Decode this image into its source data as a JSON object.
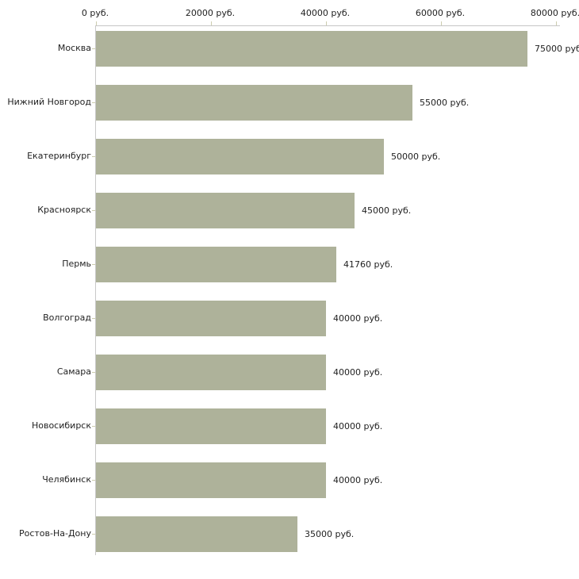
{
  "chart_data": {
    "type": "bar",
    "orientation": "horizontal",
    "title": "",
    "legend": false,
    "grid": false,
    "categories": [
      "Москва",
      "Нижний Новгород",
      "Екатеринбург",
      "Красноярск",
      "Пермь",
      "Волгоград",
      "Самара",
      "Новосибирск",
      "Челябинск",
      "Ростов-На-Дону"
    ],
    "values": [
      75000,
      55000,
      50000,
      45000,
      41760,
      40000,
      40000,
      40000,
      40000,
      35000
    ],
    "value_labels": [
      "75000 руб.",
      "55000 руб.",
      "50000 руб.",
      "45000 руб.",
      "41760 руб.",
      "40000 руб.",
      "40000 руб.",
      "40000 руб.",
      "40000 руб.",
      "35000 руб."
    ],
    "x_axis": {
      "position": "top",
      "min": 0,
      "max": 80000,
      "ticks": [
        0,
        20000,
        40000,
        60000,
        80000
      ],
      "tick_labels": [
        "0 руб.",
        "20000 руб.",
        "40000 руб.",
        "60000 руб.",
        "80000 руб."
      ],
      "unit": "руб."
    },
    "colors": {
      "bar": "#aeb29a",
      "axis_line": "#c6c6c6",
      "tick_mark": "#cdcdaf",
      "text": "#1f1f1f",
      "background": "#ffffff"
    }
  }
}
